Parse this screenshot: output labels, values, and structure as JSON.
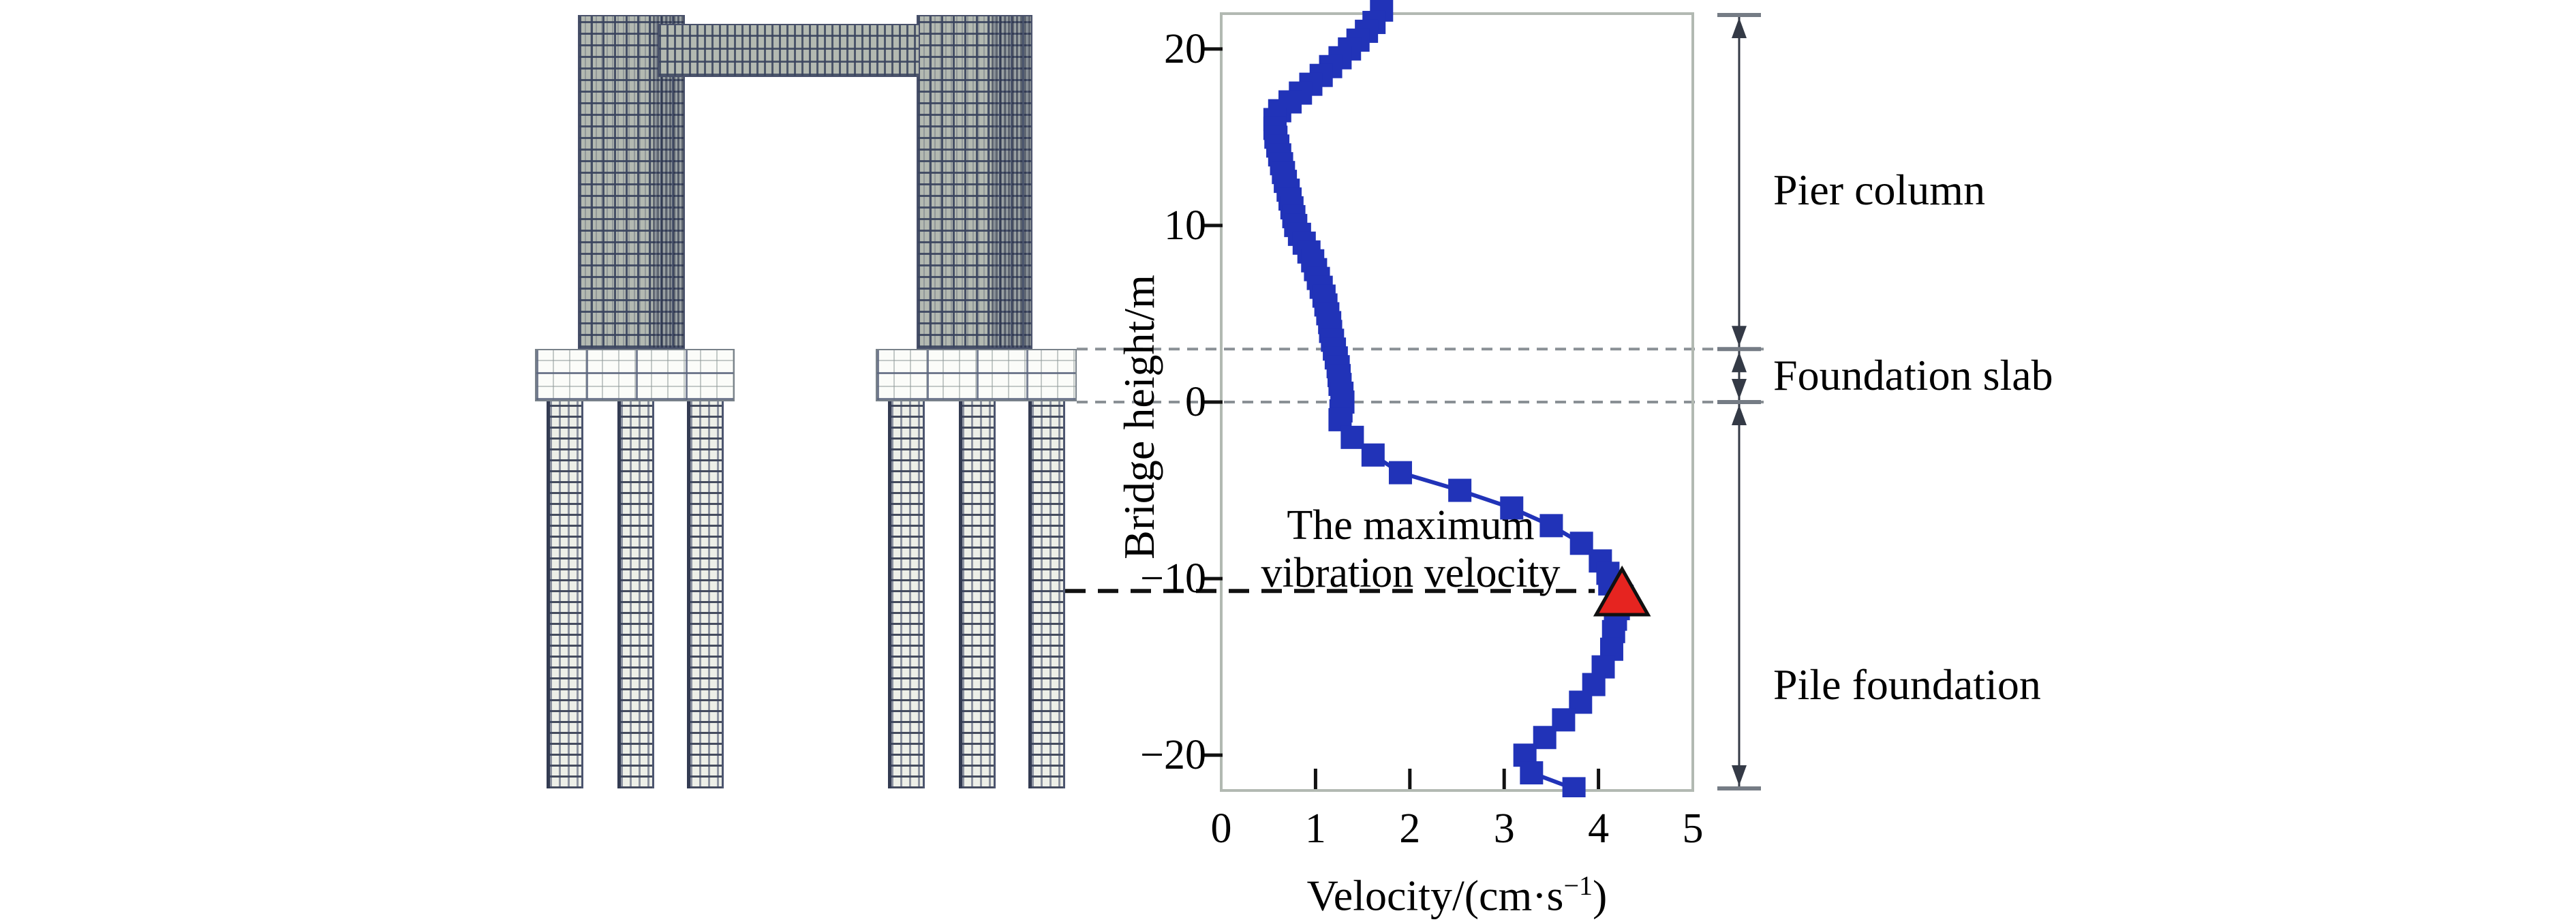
{
  "chart_data": {
    "type": "line",
    "title": "",
    "description_shown": "Vibration velocity profile along bridge height beside a finite-element mesh of the pier-slab-pile model",
    "xlabel_pre": "Velocity/(cm·s",
    "xlabel_sup": "−1",
    "xlabel_post": ")",
    "ylabel": "Bridge height/m",
    "xlim": [
      0,
      5
    ],
    "ylim": [
      -22,
      22
    ],
    "grid": false,
    "legend": "none",
    "x_ticks": [
      {
        "label": "0",
        "value": 0
      },
      {
        "label": "1",
        "value": 1
      },
      {
        "label": "2",
        "value": 2
      },
      {
        "label": "3",
        "value": 3
      },
      {
        "label": "4",
        "value": 4
      },
      {
        "label": "5",
        "value": 5
      }
    ],
    "y_ticks": [
      {
        "label": "20",
        "value": 20
      },
      {
        "label": "10",
        "value": 10
      },
      {
        "label": "0",
        "value": 0
      },
      {
        "label": "−10",
        "value": -10
      },
      {
        "label": "−20",
        "value": -20
      }
    ],
    "series": [
      {
        "name": "vibration velocity profile",
        "color": "#2133b8",
        "marker": "square",
        "points_format": "[bridge_height_m, velocity_cm_per_s]",
        "points": [
          [
            22.2,
            1.7
          ],
          [
            21.5,
            1.62
          ],
          [
            21,
            1.54
          ],
          [
            20.5,
            1.45
          ],
          [
            20,
            1.36
          ],
          [
            19.5,
            1.26
          ],
          [
            19,
            1.16
          ],
          [
            18.5,
            1.06
          ],
          [
            18,
            0.95
          ],
          [
            17.5,
            0.84
          ],
          [
            17,
            0.73
          ],
          [
            16.5,
            0.62
          ],
          [
            16,
            0.57
          ],
          [
            15.5,
            0.57
          ],
          [
            15,
            0.58
          ],
          [
            14.5,
            0.6
          ],
          [
            14,
            0.62
          ],
          [
            13.5,
            0.64
          ],
          [
            13,
            0.66
          ],
          [
            12.5,
            0.68
          ],
          [
            12,
            0.71
          ],
          [
            11.5,
            0.73
          ],
          [
            11,
            0.75
          ],
          [
            10.5,
            0.77
          ],
          [
            10,
            0.79
          ],
          [
            9.5,
            0.83
          ],
          [
            9,
            0.88
          ],
          [
            8.5,
            0.93
          ],
          [
            8,
            0.97
          ],
          [
            7.5,
            1.0
          ],
          [
            7,
            1.03
          ],
          [
            6.5,
            1.06
          ],
          [
            6,
            1.09
          ],
          [
            5.5,
            1.11
          ],
          [
            5,
            1.13
          ],
          [
            4.5,
            1.15
          ],
          [
            4,
            1.16
          ],
          [
            3.5,
            1.18
          ],
          [
            3,
            1.2
          ],
          [
            2.5,
            1.22
          ],
          [
            2,
            1.24
          ],
          [
            1.5,
            1.25
          ],
          [
            1,
            1.26
          ],
          [
            0.5,
            1.28
          ],
          [
            0,
            1.29
          ],
          [
            -0.5,
            1.27
          ],
          [
            -1,
            1.26
          ],
          [
            -2,
            1.39
          ],
          [
            -3,
            1.61
          ],
          [
            -4,
            1.9
          ],
          [
            -5,
            2.53
          ],
          [
            -6,
            3.08
          ],
          [
            -7,
            3.5
          ],
          [
            -8,
            3.82
          ],
          [
            -9,
            4.02
          ],
          [
            -9.7,
            4.1
          ],
          [
            -10.3,
            4.12
          ],
          [
            -11,
            4.25
          ],
          [
            -11.7,
            4.21
          ],
          [
            -12.3,
            4.18
          ],
          [
            -13,
            4.16
          ],
          [
            -14,
            4.14
          ],
          [
            -15,
            4.05
          ],
          [
            -16,
            3.95
          ],
          [
            -17,
            3.81
          ],
          [
            -18,
            3.63
          ],
          [
            -19,
            3.43
          ],
          [
            -20,
            3.22
          ],
          [
            -21,
            3.29
          ],
          [
            -21.9,
            3.74
          ]
        ]
      }
    ],
    "max_point": {
      "bridge_height_m": -11,
      "velocity_cm_per_s": 4.25,
      "marker": "red-triangle",
      "marker_color": "#e62420",
      "label_line1": "The maximum",
      "label_line2": "vibration velocity",
      "dashed_line_height_m": -10.7
    },
    "dividers": {
      "heights_m": [
        3,
        0
      ],
      "style": "gray-dashed"
    },
    "zones": [
      {
        "label": "Pier column",
        "from_m": 22,
        "to_m": 3
      },
      {
        "label": "Foundation slab",
        "from_m": 3,
        "to_m": 0
      },
      {
        "label": "Pile foundation",
        "from_m": 0,
        "to_m": -22
      }
    ],
    "axis_color": "#b2b9b2",
    "tick_color": "#111111",
    "dimension_line_color": "#343a46"
  }
}
